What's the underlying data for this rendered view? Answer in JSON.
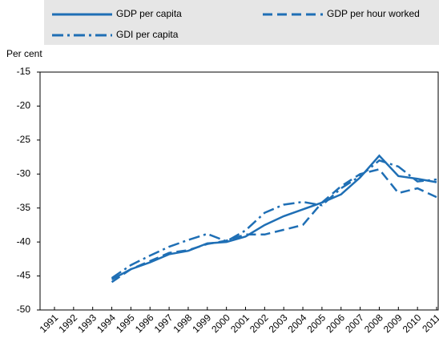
{
  "chart_data": {
    "type": "line",
    "y_label": "Per cent",
    "categories": [
      "1991",
      "1992",
      "1993",
      "1994",
      "1995",
      "1996",
      "1997",
      "1998",
      "1999",
      "2000",
      "2001",
      "2002",
      "2003",
      "2004",
      "2005",
      "2006",
      "2007",
      "2008",
      "2009",
      "2010",
      "2011"
    ],
    "series": [
      {
        "name": "GDP per capita",
        "color": "#1f6fb5",
        "style": "solid",
        "values": [
          null,
          null,
          null,
          -45.5,
          -44,
          -43,
          -41.8,
          -41.3,
          -40.2,
          -40,
          -39.2,
          -37.5,
          -36.2,
          -35.2,
          -34.2,
          -33,
          -30.5,
          -27.3,
          -30.3,
          -30.7,
          -31.2
        ]
      },
      {
        "name": "GDP per hour worked",
        "color": "#1f6fb5",
        "style": "dashed",
        "values": [
          null,
          null,
          null,
          -45.9,
          -44,
          -42.8,
          -41.6,
          -41.2,
          -40.3,
          -39.8,
          -38.9,
          -38.9,
          -38.2,
          -37.5,
          -34.2,
          -31.8,
          -30,
          -29.3,
          -32.8,
          -32.1,
          -33.4
        ]
      },
      {
        "name": "GDI per capita",
        "color": "#1f6fb5",
        "style": "dashdot",
        "values": [
          null,
          null,
          null,
          -45.3,
          -43.4,
          -42,
          -40.7,
          -39.7,
          -38.8,
          -39.9,
          -38.3,
          -35.7,
          -34.5,
          -34.1,
          -34.6,
          -32.1,
          -30.3,
          -28,
          -28.9,
          -31.1,
          -30.8
        ]
      }
    ],
    "ylim": [
      -50,
      -15
    ],
    "yticks": [
      -50,
      -45,
      -40,
      -35,
      -30,
      -25,
      -20,
      -15
    ],
    "grid": false,
    "legend": "top"
  }
}
